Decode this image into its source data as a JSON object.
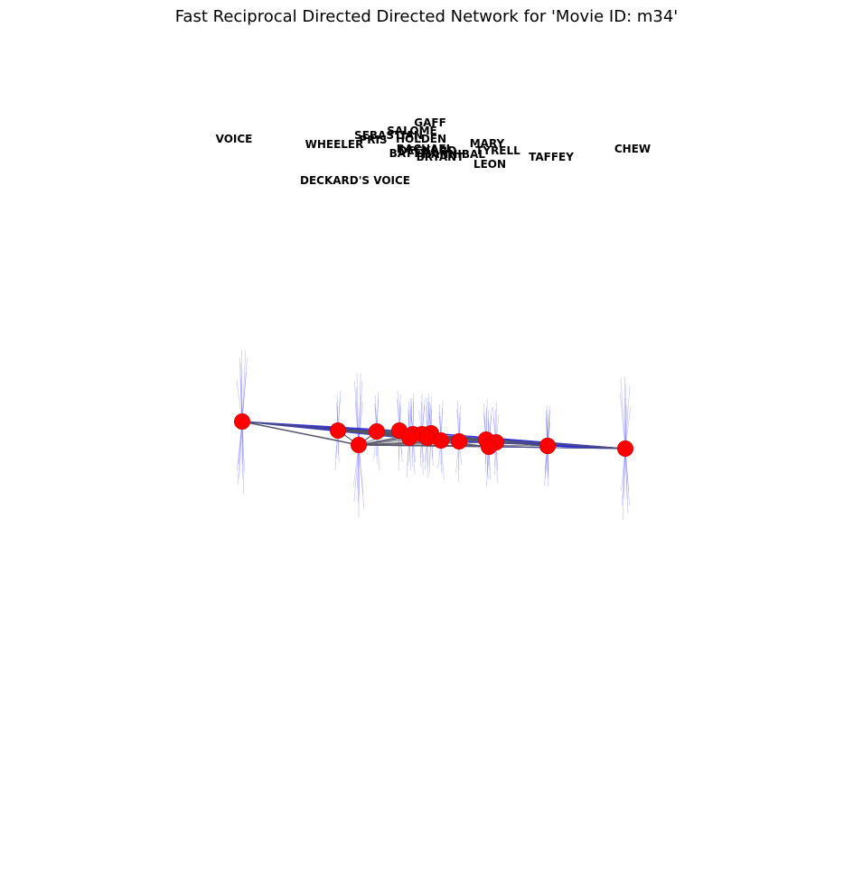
{
  "title": "Fast Reciprocal Directed Directed Network for 'Movie ID: m34'",
  "colors": {
    "node": "#ff0000",
    "edge": "#555566",
    "edge_highlight": "#2b2bd6",
    "label": "#000000"
  },
  "nodes": [
    {
      "id": "VOICE",
      "label": "VOICE"
    },
    {
      "id": "WHEELER",
      "label": "WHEELER"
    },
    {
      "id": "DECKARD'S VOICE",
      "label": "DECKARD'S VOICE"
    },
    {
      "id": "PRIS",
      "label": "PRIS"
    },
    {
      "id": "SEBASTIAN",
      "label": "SEBASTIAN"
    },
    {
      "id": "SALOME",
      "label": "SALOME"
    },
    {
      "id": "GAFF",
      "label": "GAFF"
    },
    {
      "id": "HOLDEN",
      "label": "HOLDEN"
    },
    {
      "id": "RACHAEL",
      "label": "RACHAEL"
    },
    {
      "id": "BATTY",
      "label": "BATTY"
    },
    {
      "id": "DECKARD",
      "label": "DECKARD"
    },
    {
      "id": "BRYANT",
      "label": "BRYANT"
    },
    {
      "id": "HANNIBAL",
      "label": "HANNIBAL"
    },
    {
      "id": "CHEW",
      "label": "CHEW"
    },
    {
      "id": "MARY",
      "label": "MARY"
    },
    {
      "id": "TYRELL",
      "label": "TYRELL"
    },
    {
      "id": "LEON",
      "label": "LEON"
    },
    {
      "id": "TAFFEY",
      "label": "TAFFEY"
    }
  ]
}
